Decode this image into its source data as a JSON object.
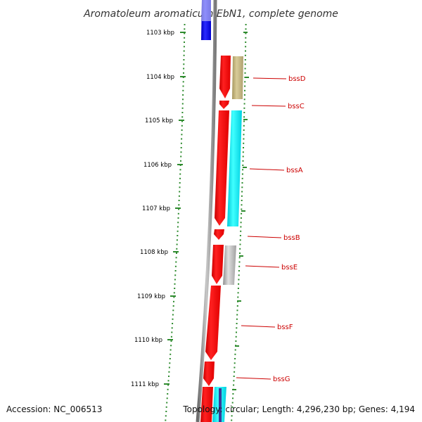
{
  "title": "Aromatoleum aromaticum EbN1, complete genome",
  "footer": {
    "accession": "Accession: NC_006513",
    "topology": "Topology: circular; Length: 4,296,230 bp; Genes: 4,194"
  },
  "scale_ticks": [
    "1103 kbp",
    "1104 kbp",
    "1105 kbp",
    "1106 kbp",
    "1107 kbp",
    "1108 kbp",
    "1109 kbp",
    "1110 kbp",
    "1111 kbp"
  ],
  "genes": [
    {
      "name": "bssD",
      "color": "#ff0000",
      "cog_color": "#c8b878"
    },
    {
      "name": "bssC",
      "color": "#ff0000",
      "cog_color": ""
    },
    {
      "name": "bssA",
      "color": "#ff0000",
      "cog_color": "#00e8f0"
    },
    {
      "name": "bssB",
      "color": "#ff0000",
      "cog_color": ""
    },
    {
      "name": "bssE",
      "color": "#ff0000",
      "cog_color": "#b8b8b8"
    },
    {
      "name": "bssF",
      "color": "#ff0000",
      "cog_color": ""
    },
    {
      "name": "bssG",
      "color": "#ff0000",
      "cog_color": ""
    }
  ],
  "colors": {
    "backbone": "#8a8a8a",
    "tick": "#2e8b2e",
    "other_strand_gene": "#0000dd",
    "label": "#cc0000"
  }
}
